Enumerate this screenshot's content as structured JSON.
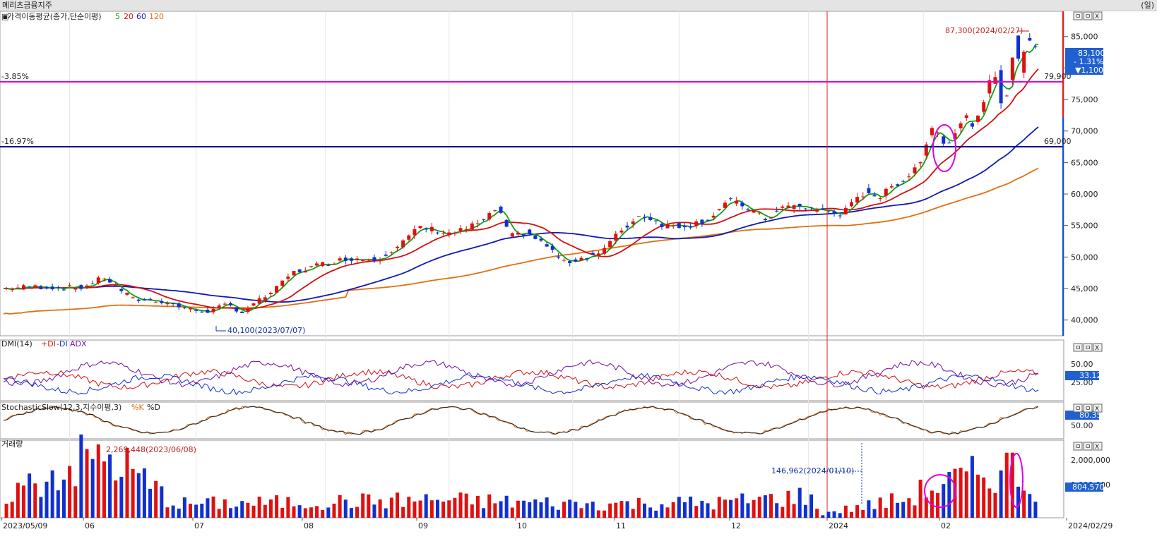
{
  "app": {
    "title": "메리츠금융지주",
    "period_label": "(일)"
  },
  "colors": {
    "up": "#e01010",
    "down": "#1030d0",
    "ma5": "#10a010",
    "ma20": "#d01010",
    "ma60": "#101ab0",
    "ma120": "#e07010",
    "magenta": "#e000e0",
    "navy": "#000090"
  },
  "panels": {
    "price": {
      "label": "가격이동평균(종가,단순이평)",
      "ma_labels": [
        "5",
        "20",
        "60",
        "120"
      ]
    },
    "dmi": {
      "label": "DMI(14)",
      "plus_di": "+DI",
      "minus_di": "-DI",
      "adx": "ADX",
      "ticks": [
        "50.00",
        "25.00"
      ],
      "last_value": "33.12"
    },
    "stoch": {
      "label": "StochasticSlow(12,3,지수이평,3)",
      "k": "%K",
      "d": "%D",
      "ticks": [
        "50.00"
      ],
      "last_value": "80.35"
    },
    "volume": {
      "label": "거래량",
      "ticks": [
        "2,000,000",
        "1,000,000"
      ],
      "last_value": "804,570"
    }
  },
  "annotations": {
    "high": "87,300(2024/02/27)",
    "low": "40,100(2023/07/07)",
    "vol_high": "2,269,448(2023/06/08)",
    "vol_low": "146,962(2024/01/10)",
    "line_magenta_pct": "-3.85%",
    "line_magenta_price": "79,900",
    "line_navy_pct": "-16.97%",
    "line_navy_price": "69,000",
    "last_price": "83,100",
    "last_change_pct": "- 1.31%",
    "last_change": "▼1,100"
  },
  "window_buttons": [
    "ㅁ",
    "ㅁ",
    "X"
  ],
  "chart_data": {
    "type": "candlestick",
    "start_date": "2023/05/09",
    "end_date": "2024/02/29",
    "x_labels": [
      "2023/05/09",
      "06",
      "07",
      "08",
      "09",
      "10",
      "11",
      "12",
      "2024",
      "02",
      "2024/02/29"
    ],
    "y_ticks": [
      40000,
      45000,
      50000,
      55000,
      60000,
      65000,
      70000,
      75000,
      80000,
      85000
    ],
    "y_tick_labels": [
      "40,000",
      "45,000",
      "50,000",
      "55,000",
      "60,000",
      "65,000",
      "70,000",
      "75,000",
      "80,000",
      "85,000"
    ],
    "ylim": [
      37500,
      89000
    ],
    "anchors": [
      [
        0,
        45000
      ],
      [
        10,
        45300
      ],
      [
        20,
        45100
      ],
      [
        28,
        45200
      ],
      [
        35,
        46800
      ],
      [
        45,
        43300
      ],
      [
        55,
        43000
      ],
      [
        65,
        41600
      ],
      [
        72,
        41400
      ],
      [
        78,
        42500
      ],
      [
        83,
        41200
      ],
      [
        90,
        43400
      ],
      [
        95,
        45000
      ],
      [
        100,
        47400
      ],
      [
        110,
        48800
      ],
      [
        120,
        49800
      ],
      [
        130,
        49700
      ],
      [
        138,
        52000
      ],
      [
        145,
        54800
      ],
      [
        155,
        53800
      ],
      [
        160,
        54300
      ],
      [
        168,
        56000
      ],
      [
        172,
        58000
      ],
      [
        176,
        53200
      ],
      [
        182,
        53900
      ],
      [
        190,
        51400
      ],
      [
        195,
        49100
      ],
      [
        200,
        49700
      ],
      [
        208,
        50800
      ],
      [
        215,
        54300
      ],
      [
        222,
        56800
      ],
      [
        230,
        55000
      ],
      [
        238,
        55000
      ],
      [
        245,
        56000
      ],
      [
        252,
        58900
      ],
      [
        258,
        58000
      ],
      [
        265,
        56000
      ],
      [
        272,
        58100
      ],
      [
        280,
        57800
      ],
      [
        285,
        57300
      ],
      [
        292,
        56900
      ],
      [
        300,
        60500
      ],
      [
        305,
        59500
      ],
      [
        310,
        61500
      ],
      [
        315,
        63000
      ],
      [
        320,
        66000
      ],
      [
        323,
        71000
      ],
      [
        328,
        68000
      ],
      [
        332,
        70500
      ],
      [
        335,
        72000
      ],
      [
        338,
        71000
      ],
      [
        340,
        72600
      ],
      [
        343,
        77500
      ],
      [
        346,
        79500
      ],
      [
        347,
        75000
      ],
      [
        349,
        75800
      ],
      [
        351,
        81000
      ],
      [
        352,
        85000
      ],
      [
        354,
        79000
      ],
      [
        356,
        85500
      ],
      [
        358,
        84000
      ],
      [
        360,
        83100
      ]
    ],
    "volume_anchors": [
      [
        0,
        800000
      ],
      [
        32,
        2269448
      ],
      [
        40,
        2000000
      ],
      [
        60,
        500000
      ],
      [
        100,
        550000
      ],
      [
        150,
        650000
      ],
      [
        200,
        500000
      ],
      [
        250,
        550000
      ],
      [
        280,
        800000
      ],
      [
        284,
        146962
      ],
      [
        315,
        700000
      ],
      [
        320,
        1000000
      ],
      [
        350,
        1850000
      ],
      [
        360,
        804570
      ]
    ]
  }
}
